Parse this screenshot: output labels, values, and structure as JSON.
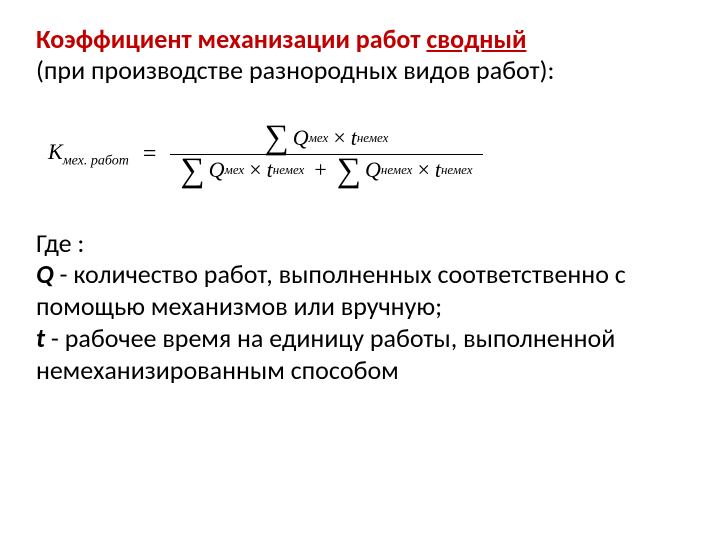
{
  "title": {
    "line1a": "Коэффициент механизации работ ",
    "line1b": "сводный",
    "line2": "(при производстве разнородных видов работ):",
    "color": "#c00000"
  },
  "formula": {
    "lhs_K": "K",
    "lhs_sub": "мех. работ",
    "eq": "=",
    "num_Q": "Q",
    "num_Q_sub": "мех",
    "num_t": "t",
    "num_t_sub": "немех",
    "den1_Q": "Q",
    "den1_Q_sub": "мех",
    "den1_t": "t",
    "den1_t_sub": "немех",
    "den2_Q": "Q",
    "den2_Q_sub": "немех",
    "den2_t": "t",
    "den2_t_sub": "немех",
    "mult": "×",
    "plus": "+"
  },
  "body": {
    "where": "Где :",
    "q_sym": "Q",
    "q_text": " - количество работ, выполненных соответственно с помощью механизмов или вручную;",
    "t_sym": " t",
    "t_text": " - рабочее время на единицу работы, выполненной немеханизированным способом"
  }
}
